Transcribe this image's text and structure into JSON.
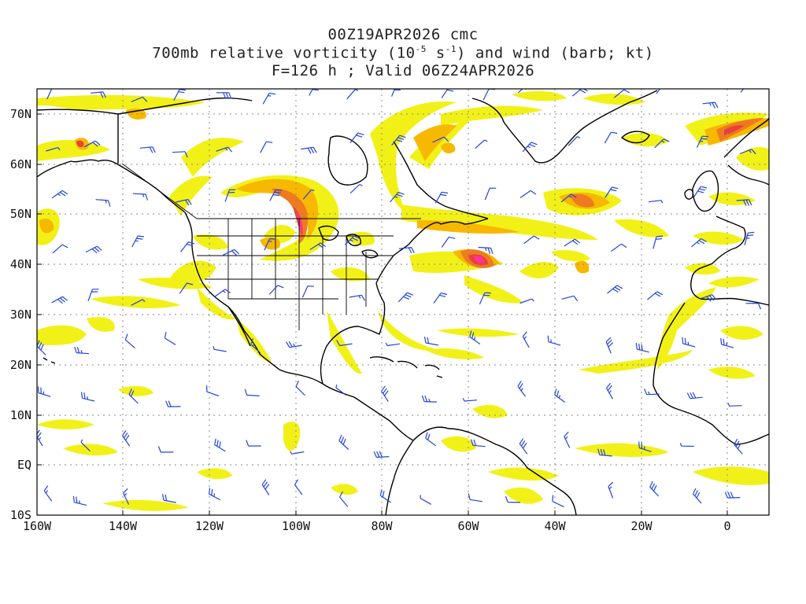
{
  "title": {
    "line1": "00Z19APR2026 cmc",
    "line2_pre": "700mb relative vorticity (10",
    "line2_exp1": "-5",
    "line2_mid": " s",
    "line2_exp2": "-1",
    "line2_post": ") and wind (barb; kt)",
    "line3": "F=126 h ; Valid 06Z24APR2026"
  },
  "axes": {
    "lat_labels": [
      "70N",
      "60N",
      "50N",
      "40N",
      "30N",
      "20N",
      "10N",
      "EQ",
      "10S"
    ],
    "lon_labels": [
      "160W",
      "140W",
      "120W",
      "100W",
      "80W",
      "60W",
      "40W",
      "20W",
      "0"
    ]
  },
  "colors": {
    "vort_yellow": "#f0f000",
    "vort_lightyellow": "#f5f56a",
    "vort_orange": "#f7b800",
    "vort_darkorange": "#ef7a20",
    "vort_red": "#e8403a",
    "vort_magenta": "#ff3399",
    "barb": "#2244dd",
    "coast": "#000000",
    "grid": "#888888"
  },
  "vorticity_maxima": [
    {
      "place": "Upper Midwest",
      "intensity": "high"
    },
    {
      "place": "NW Atlantic near 40N 57W",
      "intensity": "high"
    },
    {
      "place": "Central Atlantic near 52N 35W",
      "intensity": "moderate"
    },
    {
      "place": "Norwegian Sea near 66N 0",
      "intensity": "moderate"
    }
  ]
}
